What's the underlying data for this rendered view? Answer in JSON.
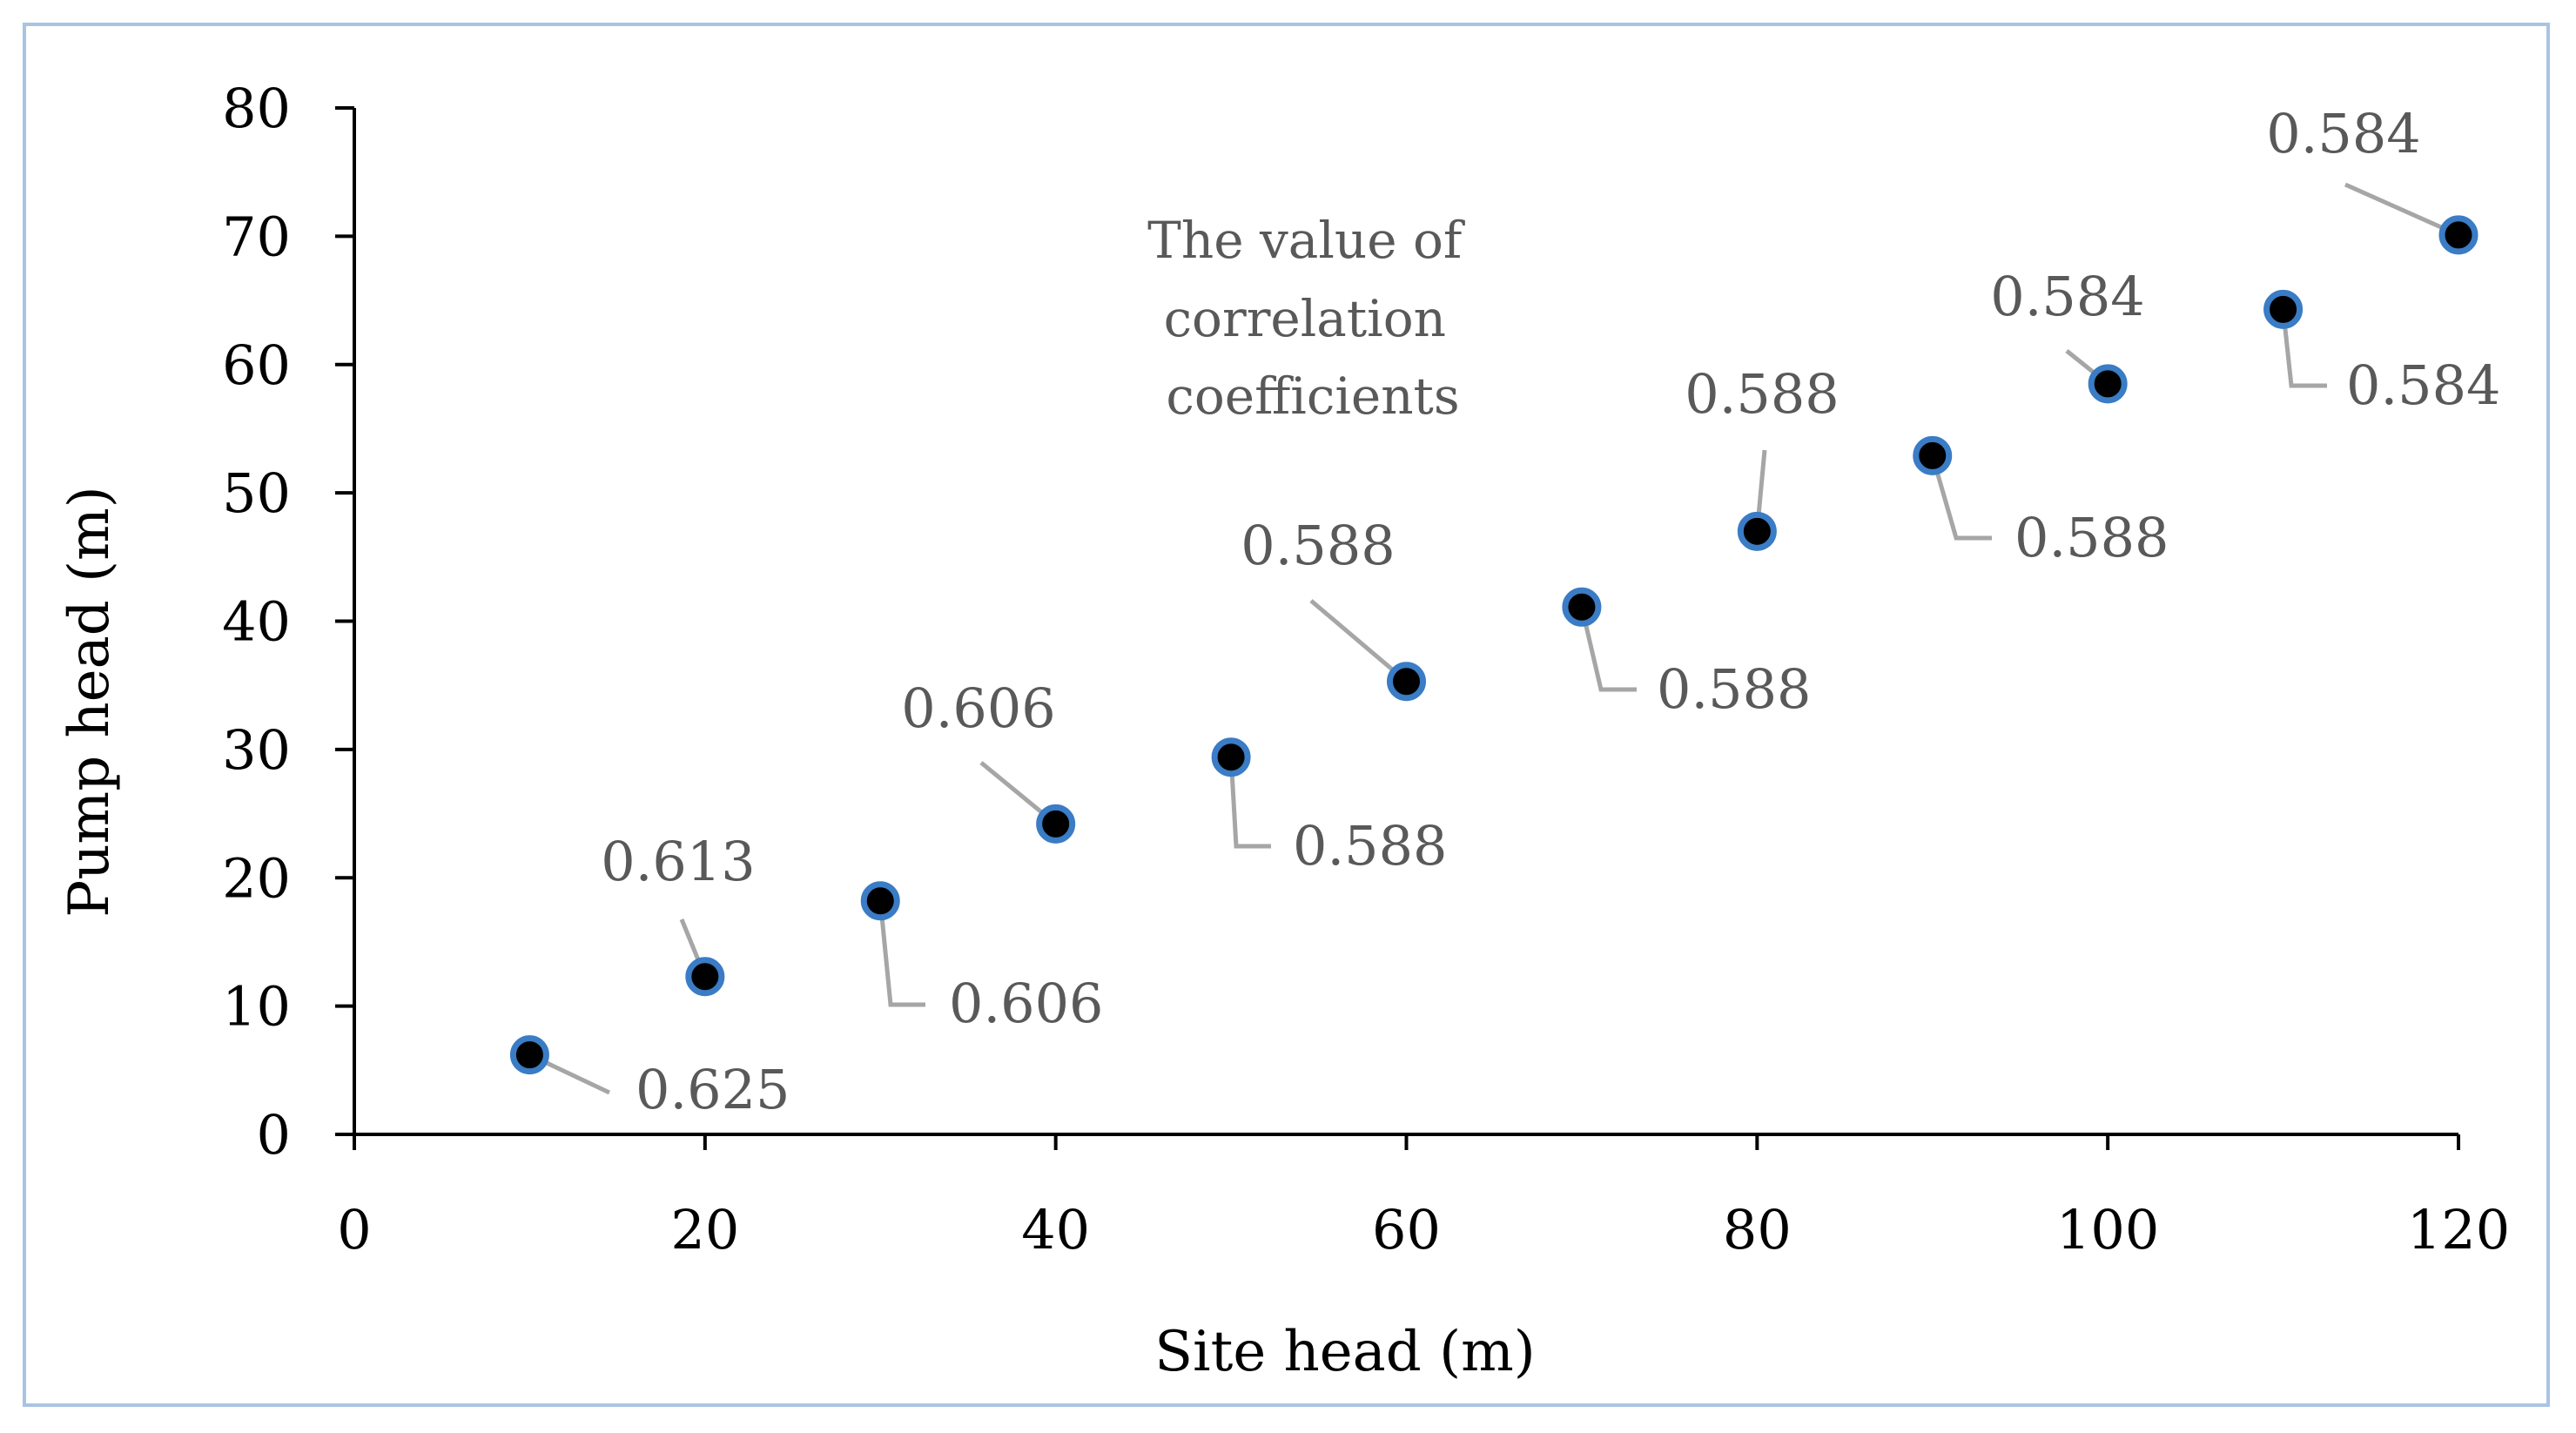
{
  "chart_data": {
    "type": "scatter",
    "title": "",
    "xlabel": "Site head (m)",
    "ylabel": "Pump head (m)",
    "xlim": [
      0,
      120
    ],
    "ylim": [
      0,
      80
    ],
    "xticks": [
      0,
      20,
      40,
      60,
      80,
      100,
      120
    ],
    "yticks": [
      0,
      10,
      20,
      30,
      40,
      50,
      60,
      70,
      80
    ],
    "grid": false,
    "legend": "none",
    "series": [
      {
        "name": "Pump head",
        "x": [
          10,
          20,
          30,
          40,
          50,
          60,
          70,
          80,
          90,
          100,
          110,
          120
        ],
        "y": [
          6.2,
          12.3,
          18.2,
          24.2,
          29.4,
          35.3,
          41.1,
          47.0,
          52.9,
          58.5,
          64.3,
          70.1
        ],
        "labels": [
          "0.625",
          "0.613",
          "0.606",
          "0.606",
          "0.588",
          "0.588",
          "0.588",
          "0.588",
          "0.588",
          "0.584",
          "0.584",
          "0.584"
        ]
      }
    ],
    "annotation": [
      "The value of",
      "correlation",
      "coefficients"
    ],
    "colors": {
      "point_fill": "#000000",
      "point_edge": "#3a7cc5",
      "label_text": "#595959",
      "leader": "#a6a6a6",
      "frame": "#a9c4e3"
    }
  }
}
